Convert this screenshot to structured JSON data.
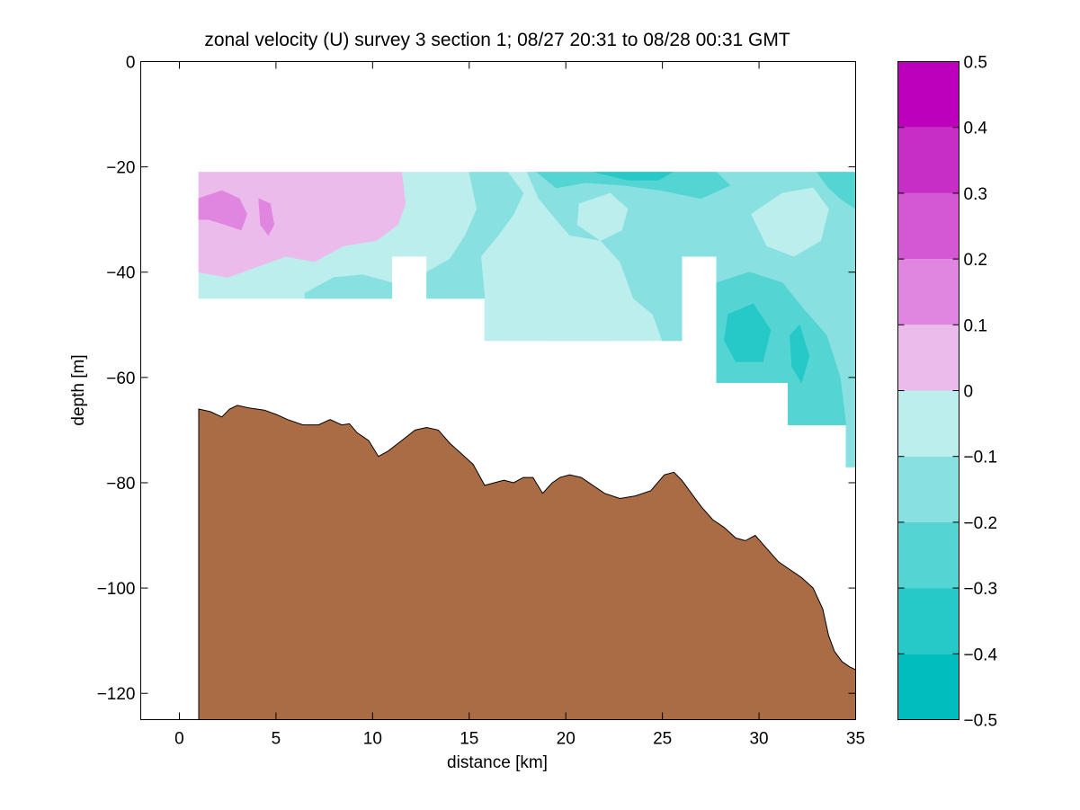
{
  "chart_data": [
    {
      "type": "heatmap",
      "title": "zonal velocity (U) survey 3 section 1; 08/27 20:31 to 08/28 00:31 GMT",
      "xlabel": "distance [km]",
      "ylabel": "depth [m]",
      "xlim": [
        -2,
        35
      ],
      "ylim": [
        -125,
        0
      ],
      "xticks": [
        0,
        5,
        10,
        15,
        20,
        25,
        30,
        35
      ],
      "yticks": [
        0,
        -20,
        -40,
        -60,
        -80,
        -100,
        -120
      ],
      "grid": false,
      "legend": "colorbar-right",
      "velocity_field": {
        "depth_top": -21,
        "columns": [
          {
            "x0": 1,
            "x1": 11,
            "bottom": -45
          },
          {
            "x0": 11,
            "x1": 12.8,
            "bottom": -37
          },
          {
            "x0": 12.8,
            "x1": 15.8,
            "bottom": -45
          },
          {
            "x0": 15.8,
            "x1": 26,
            "bottom": -53
          },
          {
            "x0": 26,
            "x1": 27.8,
            "bottom": -37
          },
          {
            "x0": 27.8,
            "x1": 31.5,
            "bottom": -61
          },
          {
            "x0": 31.5,
            "x1": 34.5,
            "bottom": -69
          },
          {
            "x0": 34.5,
            "x1": 35,
            "bottom": -77
          }
        ],
        "regions": [
          {
            "level": -0.05,
            "points": [
              [
                1,
                -21
              ],
              [
                35,
                -21
              ],
              [
                35,
                -77
              ],
              [
                34.5,
                -77
              ],
              [
                34.5,
                -69
              ],
              [
                31.5,
                -69
              ],
              [
                31.5,
                -61
              ],
              [
                27.8,
                -61
              ],
              [
                27.8,
                -37
              ],
              [
                26,
                -37
              ],
              [
                26,
                -53
              ],
              [
                15.8,
                -53
              ],
              [
                15.8,
                -45
              ],
              [
                12.8,
                -45
              ],
              [
                12.8,
                -37
              ],
              [
                11,
                -37
              ],
              [
                11,
                -45
              ],
              [
                1,
                -45
              ]
            ]
          },
          {
            "level": 0.05,
            "points": [
              [
                1,
                -21
              ],
              [
                11.5,
                -21
              ],
              [
                11.7,
                -27
              ],
              [
                11.3,
                -31
              ],
              [
                10.2,
                -34
              ],
              [
                8.5,
                -35
              ],
              [
                7,
                -38
              ],
              [
                5.5,
                -37
              ],
              [
                4,
                -39
              ],
              [
                2.5,
                -41
              ],
              [
                1,
                -40
              ]
            ]
          },
          {
            "level": 0.15,
            "points": [
              [
                1,
                -26
              ],
              [
                2.2,
                -24.5
              ],
              [
                3.1,
                -26
              ],
              [
                3.5,
                -29
              ],
              [
                3.2,
                -32
              ],
              [
                2.4,
                -31
              ],
              [
                1.5,
                -30
              ],
              [
                1,
                -30
              ]
            ]
          },
          {
            "level": 0.15,
            "points": [
              [
                4.1,
                -26
              ],
              [
                4.7,
                -27
              ],
              [
                4.9,
                -31
              ],
              [
                4.6,
                -33
              ],
              [
                4.2,
                -31
              ]
            ]
          },
          {
            "level": -0.15,
            "points": [
              [
                15,
                -21
              ],
              [
                17,
                -21
              ],
              [
                17.8,
                -25
              ],
              [
                17.3,
                -29
              ],
              [
                16.5,
                -33
              ],
              [
                15.6,
                -37
              ],
              [
                15.8,
                -45
              ],
              [
                12.8,
                -45
              ],
              [
                12.8,
                -40
              ],
              [
                14,
                -37.5
              ],
              [
                14.8,
                -33
              ],
              [
                15.4,
                -28
              ]
            ]
          },
          {
            "level": -0.15,
            "points": [
              [
                6.5,
                -44
              ],
              [
                8,
                -41
              ],
              [
                9.5,
                -40.5
              ],
              [
                11,
                -42
              ],
              [
                11,
                -45
              ],
              [
                6.5,
                -45
              ]
            ]
          },
          {
            "level": -0.15,
            "points": [
              [
                18,
                -21
              ],
              [
                35,
                -21
              ],
              [
                35,
                -77
              ],
              [
                34.5,
                -77
              ],
              [
                34.5,
                -69
              ],
              [
                31.5,
                -69
              ],
              [
                31.5,
                -61
              ],
              [
                27.8,
                -61
              ],
              [
                27.8,
                -37
              ],
              [
                26,
                -37
              ],
              [
                26,
                -53
              ],
              [
                25,
                -53
              ],
              [
                24.5,
                -48
              ],
              [
                23.5,
                -45
              ],
              [
                22.8,
                -38
              ],
              [
                21.8,
                -34
              ],
              [
                20.2,
                -33
              ],
              [
                19.5,
                -30
              ],
              [
                18.6,
                -26
              ]
            ]
          },
          {
            "level": -0.05,
            "points": [
              [
                20.7,
                -27
              ],
              [
                22.3,
                -25
              ],
              [
                23.2,
                -28
              ],
              [
                22.9,
                -32
              ],
              [
                21.8,
                -34
              ],
              [
                20.6,
                -31
              ]
            ]
          },
          {
            "level": -0.05,
            "points": [
              [
                29.6,
                -29
              ],
              [
                31.2,
                -25
              ],
              [
                32.8,
                -24
              ],
              [
                33.6,
                -28
              ],
              [
                33.2,
                -34
              ],
              [
                31.8,
                -37
              ],
              [
                30.4,
                -35
              ]
            ]
          },
          {
            "level": -0.05,
            "points": [
              [
                18.8,
                -37
              ],
              [
                20.2,
                -38
              ],
              [
                21.5,
                -44
              ],
              [
                22.5,
                -53
              ],
              [
                19,
                -53
              ],
              [
                18.4,
                -46
              ]
            ]
          },
          {
            "level": -0.25,
            "points": [
              [
                18.5,
                -21
              ],
              [
                27.8,
                -21
              ],
              [
                28.5,
                -23.5
              ],
              [
                27,
                -26
              ],
              [
                25,
                -24.5
              ],
              [
                23,
                -23.5
              ],
              [
                21,
                -23
              ],
              [
                19.5,
                -24
              ]
            ]
          },
          {
            "level": -0.25,
            "points": [
              [
                27.8,
                -42
              ],
              [
                29.5,
                -40
              ],
              [
                31.2,
                -42
              ],
              [
                32.3,
                -47
              ],
              [
                33.5,
                -52
              ],
              [
                34.2,
                -60
              ],
              [
                34.5,
                -69
              ],
              [
                31.5,
                -69
              ],
              [
                31.5,
                -61
              ],
              [
                27.8,
                -61
              ]
            ]
          },
          {
            "level": -0.25,
            "points": [
              [
                33,
                -21
              ],
              [
                35,
                -21
              ],
              [
                35,
                -28
              ],
              [
                34.2,
                -26
              ],
              [
                33.6,
                -24
              ]
            ]
          },
          {
            "level": -0.35,
            "points": [
              [
                28.4,
                -48
              ],
              [
                29.7,
                -46
              ],
              [
                30.6,
                -51
              ],
              [
                30.2,
                -57
              ],
              [
                28.8,
                -57
              ],
              [
                28.2,
                -53
              ]
            ]
          },
          {
            "level": -0.35,
            "points": [
              [
                21.5,
                -21
              ],
              [
                25.5,
                -21
              ],
              [
                24.8,
                -22.5
              ],
              [
                23.2,
                -22.5
              ]
            ]
          },
          {
            "level": -0.35,
            "points": [
              [
                31.6,
                -52
              ],
              [
                32.1,
                -50
              ],
              [
                32.6,
                -56
              ],
              [
                32.2,
                -61
              ],
              [
                31.7,
                -58
              ]
            ]
          }
        ]
      },
      "bathymetry": {
        "x": [
          1,
          1.6,
          2.2,
          2.6,
          3,
          3.6,
          4.4,
          5,
          5.6,
          6.4,
          7.2,
          7.8,
          8.4,
          8.8,
          9.2,
          9.8,
          10.3,
          10.8,
          11.5,
          12.2,
          12.8,
          13.4,
          14,
          14.6,
          15.2,
          15.8,
          16.3,
          16.8,
          17.3,
          17.8,
          18.3,
          18.8,
          19.3,
          19.7,
          20.2,
          20.8,
          21.4,
          22,
          22.8,
          23.6,
          24.4,
          25.1,
          25.6,
          26,
          26.4,
          27,
          27.6,
          28.2,
          28.8,
          29.3,
          29.8,
          30.4,
          31,
          31.6,
          32.2,
          32.8,
          33.3,
          33.6,
          33.9,
          34.3,
          34.7,
          35
        ],
        "depth": [
          -66,
          -66.5,
          -67.5,
          -66,
          -65.3,
          -65.8,
          -66.2,
          -67,
          -68,
          -69,
          -69,
          -68,
          -69,
          -68.8,
          -70.5,
          -72,
          -75,
          -74,
          -72,
          -70,
          -69.5,
          -70,
          -72.5,
          -74.5,
          -76.5,
          -80.5,
          -80,
          -79.5,
          -80,
          -79,
          -79,
          -82,
          -80,
          -79,
          -78.5,
          -79,
          -80.5,
          -82,
          -83,
          -82.5,
          -81.5,
          -78.5,
          -78,
          -79.5,
          -81.5,
          -84.5,
          -87,
          -88.5,
          -90.5,
          -91,
          -90,
          -92.5,
          -95,
          -96.5,
          -98,
          -100,
          -104,
          -109,
          -112,
          -114,
          -115,
          -115.5
        ]
      },
      "colorbar": {
        "min": -0.5,
        "max": 0.5,
        "ticks": [
          0.5,
          0.4,
          0.3,
          0.2,
          0.1,
          0,
          -0.1,
          -0.2,
          -0.3,
          -0.4,
          -0.5
        ],
        "tick_labels": [
          "0.5",
          "0.4",
          "0.3",
          "0.2",
          "0.1",
          "0",
          "−0.1",
          "−0.2",
          "−0.3",
          "−0.4",
          "−0.5"
        ],
        "levels": [
          -0.45,
          -0.35,
          -0.25,
          -0.15,
          -0.05,
          0.05,
          0.15,
          0.25,
          0.35,
          0.45
        ],
        "colors": [
          "#00bebe",
          "#26c8c8",
          "#55d4d4",
          "#88e0e0",
          "#bdeeee",
          "#ebbceb",
          "#e086e0",
          "#d457d4",
          "#c62ec6",
          "#bc00bc"
        ]
      },
      "bathymetry_color": "#aa6c45"
    }
  ]
}
